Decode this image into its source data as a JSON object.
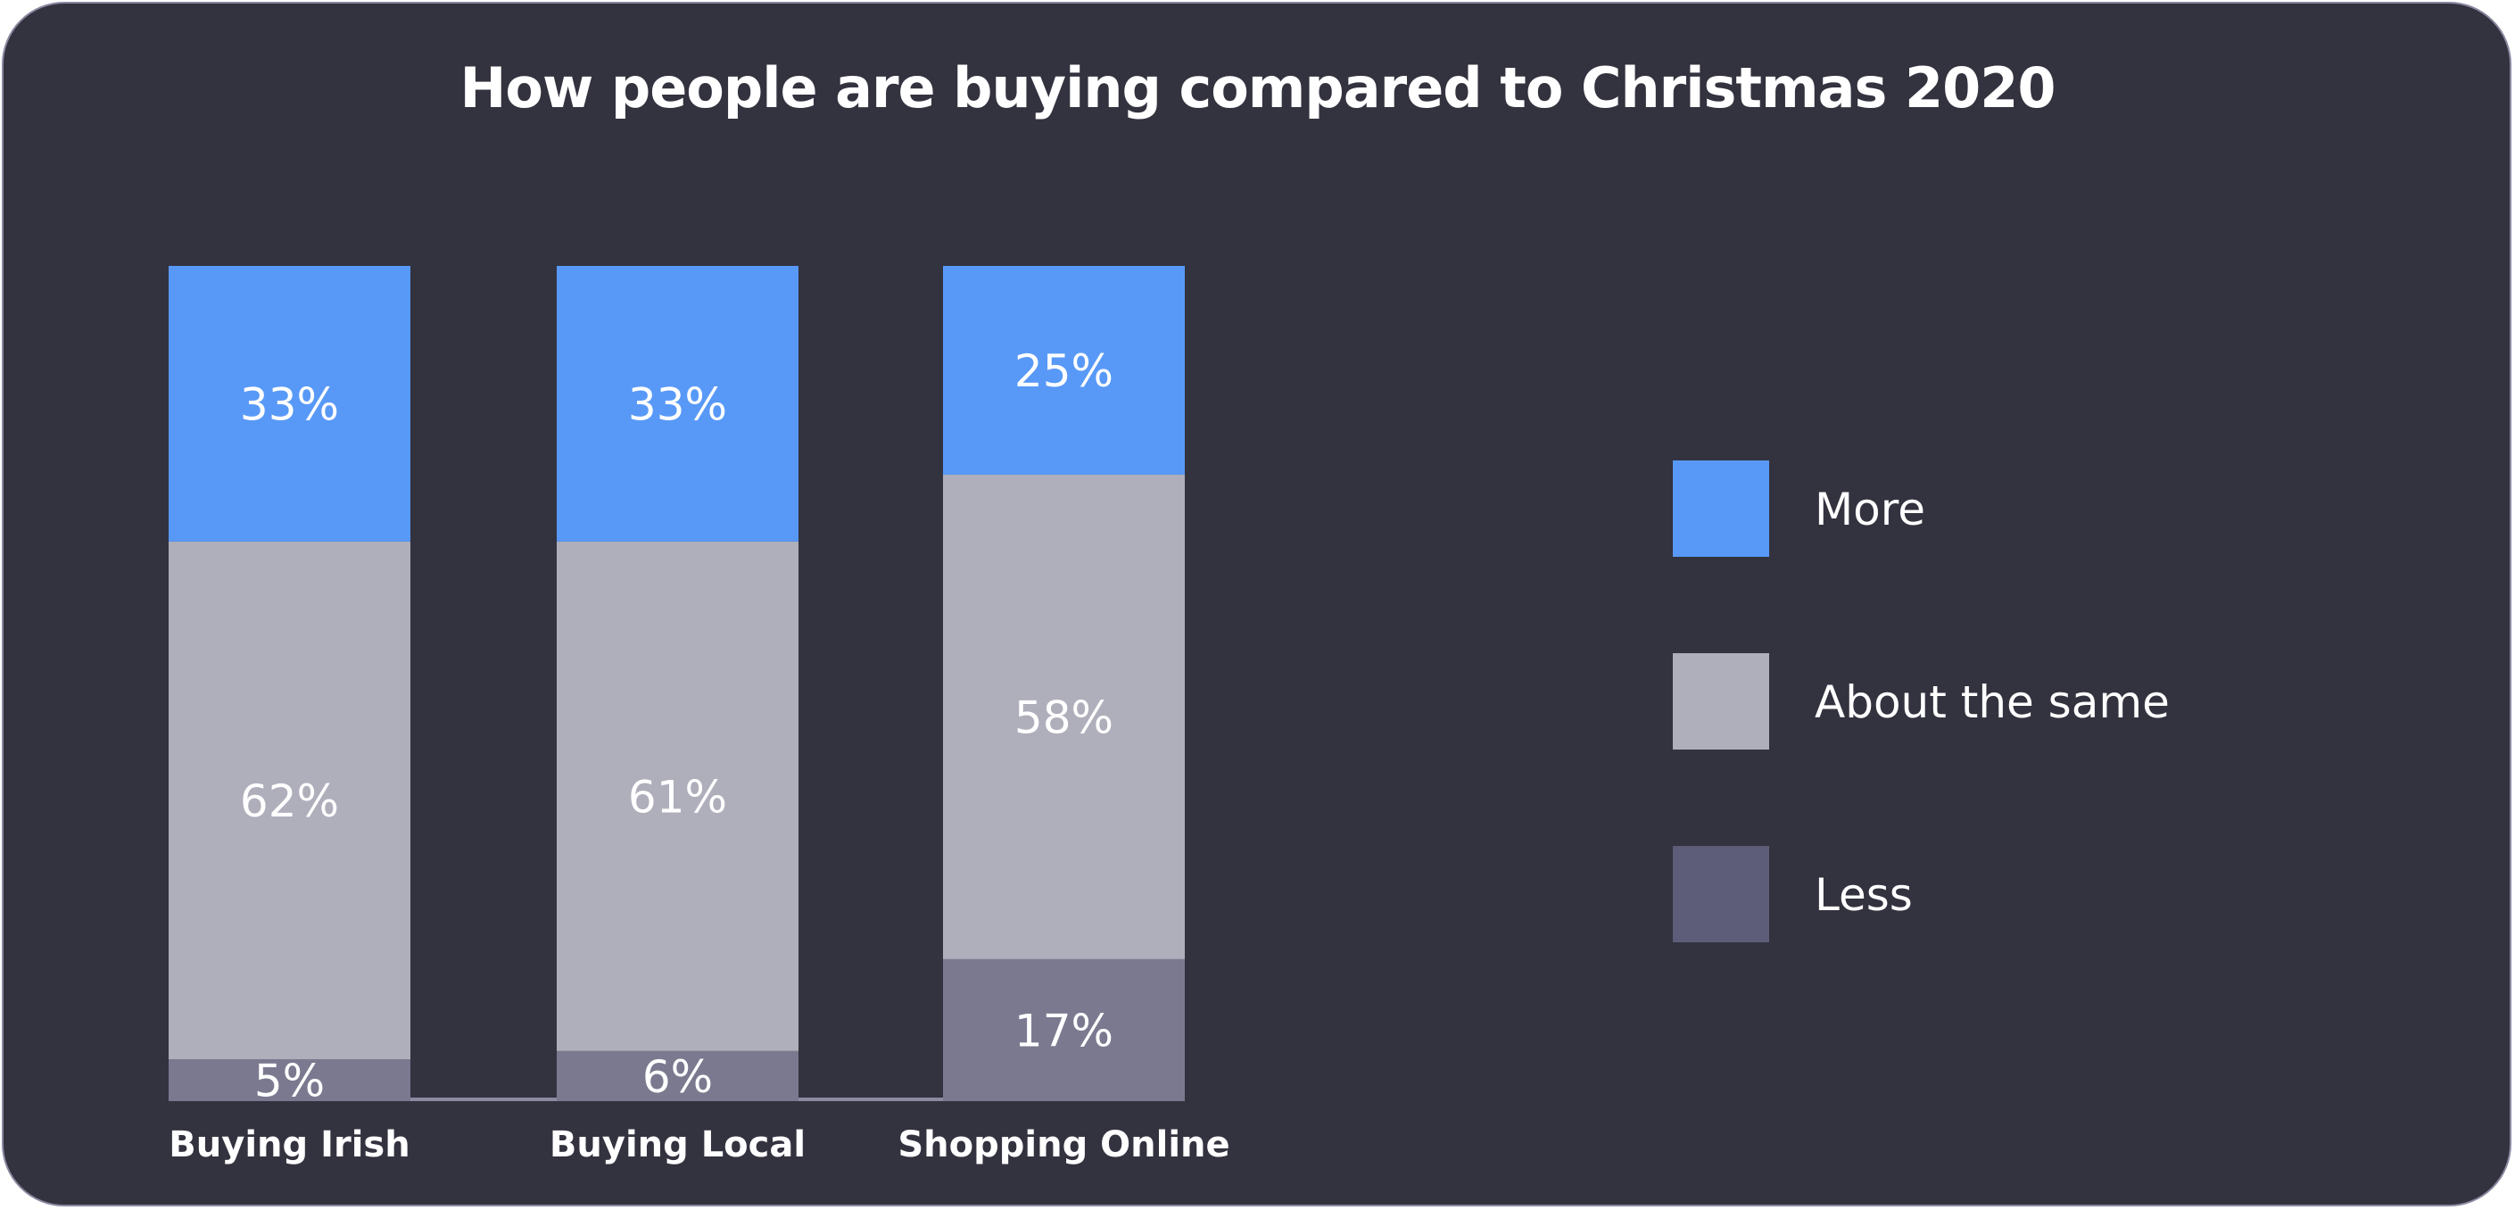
{
  "chart_data": {
    "type": "bar",
    "stacked": true,
    "title": "How people are buying compared to Christmas 2020",
    "categories": [
      "Buying Irish",
      "Buying Local",
      "Shopping Online"
    ],
    "series": [
      {
        "name": "More",
        "values": [
          33,
          33,
          25
        ],
        "labels": [
          "33%",
          "33%",
          "25%"
        ],
        "color": "#5899f7"
      },
      {
        "name": "About the same",
        "values": [
          62,
          61,
          58
        ],
        "labels": [
          "62%",
          "61%",
          "58%"
        ],
        "color": "#afaebb"
      },
      {
        "name": "Less",
        "values": [
          5,
          6,
          17
        ],
        "labels": [
          "5%",
          "6%",
          "17%"
        ],
        "color": "#7a798f"
      }
    ],
    "legend_colors": [
      "#5899f7",
      "#afaebb",
      "#5e5d79"
    ],
    "ylim": [
      0,
      100
    ],
    "grid": false,
    "legend_position": "right",
    "background": "#33323f"
  }
}
